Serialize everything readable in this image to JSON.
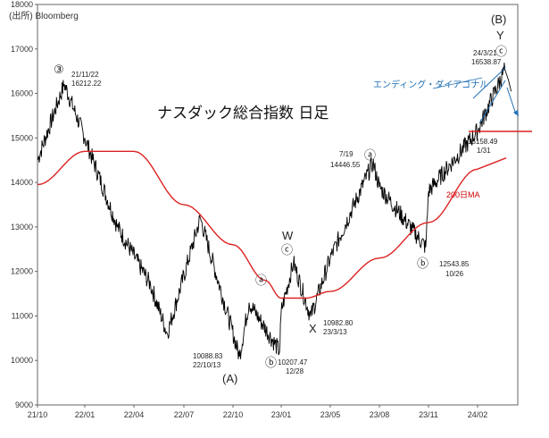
{
  "source": "(出所) Bloomberg",
  "chart_data": {
    "type": "line",
    "title": "ナスダック総合指数 日足",
    "ylim": [
      9000,
      18000
    ],
    "yticks": [
      9000,
      10000,
      11000,
      12000,
      13000,
      14000,
      15000,
      16000,
      17000,
      18000
    ],
    "xticks": [
      "21/10",
      "22/01",
      "22/04",
      "22/07",
      "22/10",
      "23/01",
      "23/05",
      "23/08",
      "23/11",
      "24/02"
    ],
    "grid": false,
    "series": [
      {
        "name": "",
        "kind": "daily-close",
        "color": "#000000",
        "points": [
          [
            "21/10",
            14500
          ],
          [
            "21/11/22",
            16212
          ],
          [
            "22/01",
            15000
          ],
          [
            "22/03",
            13000
          ],
          [
            "22/05",
            11700
          ],
          [
            "22/06",
            10600
          ],
          [
            "22/08",
            13200
          ],
          [
            "22/10/13",
            10088
          ],
          [
            "22/11",
            11300
          ],
          [
            "22/12/28",
            10207
          ],
          [
            "23/01",
            11100
          ],
          [
            "23/02",
            12200
          ],
          [
            "23/03/13",
            10982
          ],
          [
            "23/05",
            12300
          ],
          [
            "23/07/19",
            14446
          ],
          [
            "23/08",
            13900
          ],
          [
            "23/10/26",
            12543
          ],
          [
            "23/11",
            13800
          ],
          [
            "24/01/31",
            15158
          ],
          [
            "24/03/21",
            16538
          ]
        ]
      },
      {
        "name": "200日MA",
        "kind": "moving-average",
        "color": "#dd2222",
        "points": [
          [
            "21/10",
            13950
          ],
          [
            "22/01",
            14700
          ],
          [
            "22/04",
            14700
          ],
          [
            "22/07",
            13500
          ],
          [
            "22/10",
            12600
          ],
          [
            "22/12",
            11800
          ],
          [
            "23/01",
            11400
          ],
          [
            "23/03",
            11400
          ],
          [
            "23/05",
            11550
          ],
          [
            "23/08",
            12300
          ],
          [
            "23/11",
            13100
          ],
          [
            "24/02",
            14300
          ]
        ]
      }
    ],
    "annotations": [
      {
        "marker": "③",
        "label": "21/11/22",
        "value": "16212.22"
      },
      {
        "wave": "(A)",
        "label": "22/10/13",
        "value": "10088.83"
      },
      {
        "wave": "W",
        "marker": "ⓒ"
      },
      {
        "marker": "ⓐ"
      },
      {
        "marker": "ⓑ",
        "label": "12/28",
        "value": "10207.47"
      },
      {
        "wave": "X",
        "label": "23/3/13",
        "value": "10982.80"
      },
      {
        "marker": "ⓐ",
        "label": "7/19",
        "value": "14446.55"
      },
      {
        "marker": "ⓑ",
        "label": "10/26",
        "value": "12543.85"
      },
      {
        "wave": "(B)",
        "marker": "Y"
      },
      {
        "marker": "ⓒ",
        "label": "24/3/21",
        "value": "16538.87"
      },
      {
        "label": "1/31",
        "value": "15158.49"
      }
    ],
    "diagonal_label": "エンディング・ダイアゴナル",
    "ma_label": "200日MA"
  }
}
